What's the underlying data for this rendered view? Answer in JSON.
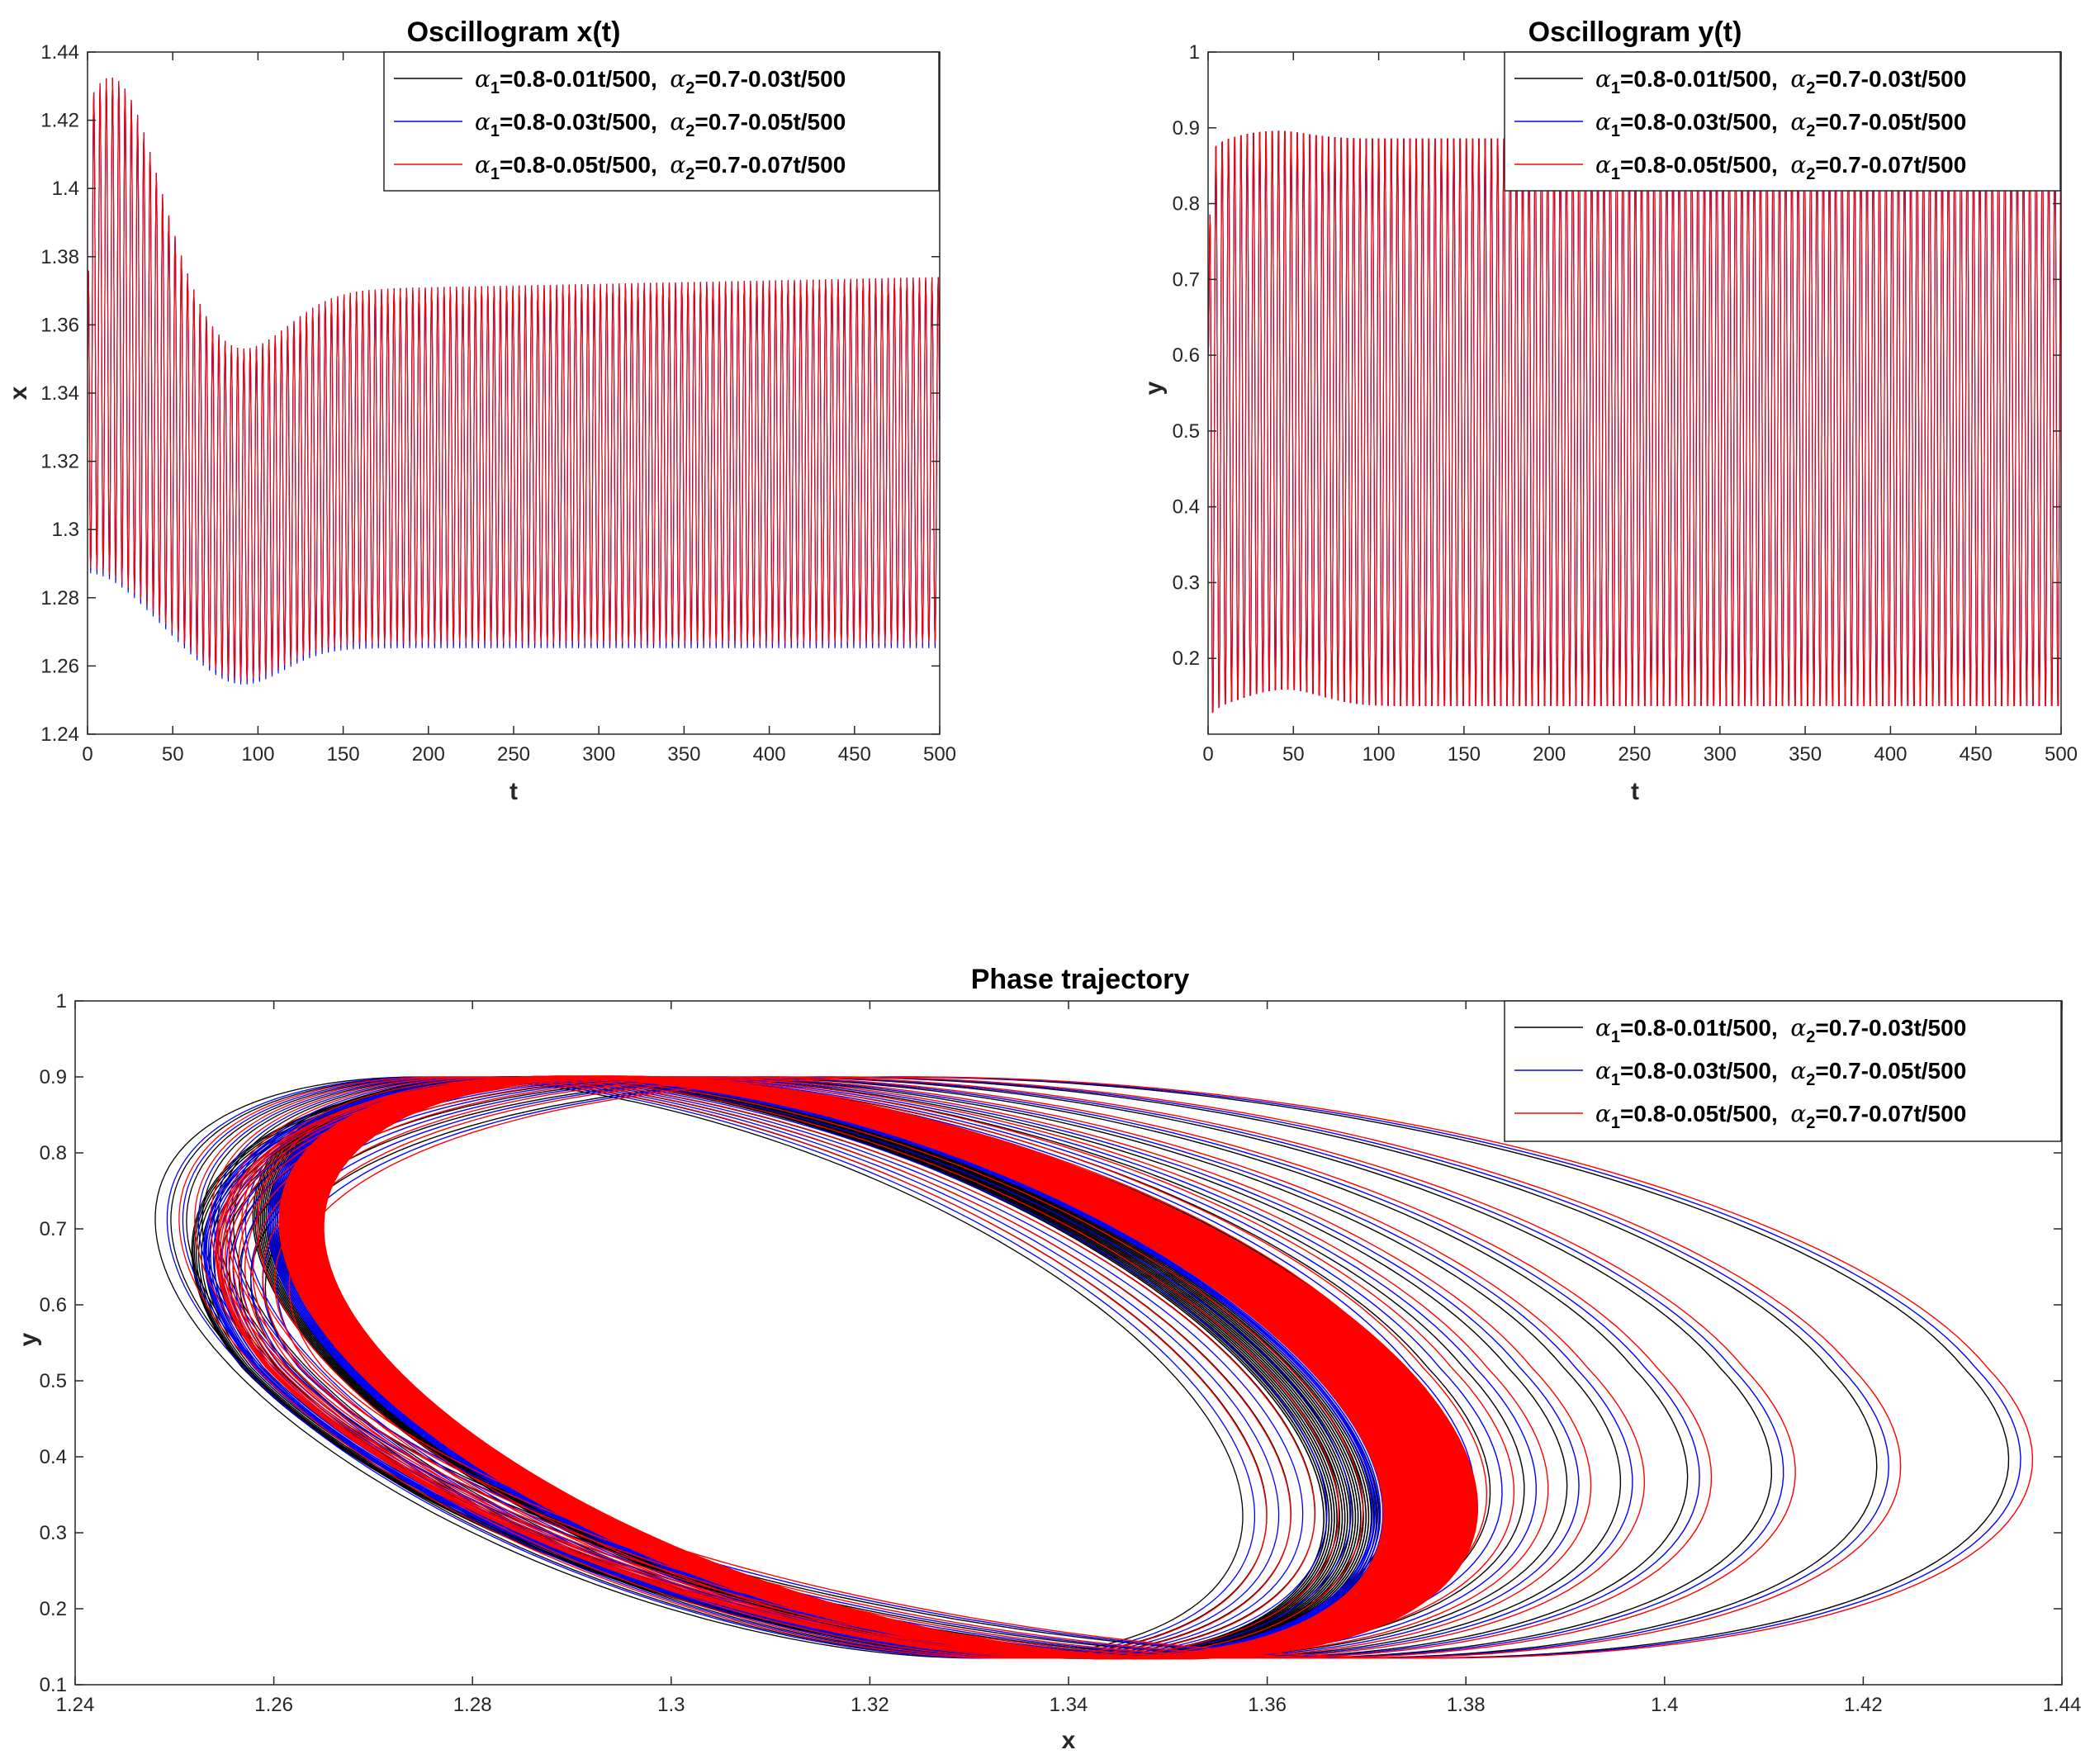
{
  "chart_data": [
    {
      "type": "line",
      "title": "Oscillogram x(t)",
      "xlabel": "t",
      "ylabel": "x",
      "xlim": [
        0,
        500
      ],
      "ylim": [
        1.24,
        1.44
      ],
      "xticks": [
        "0",
        "50",
        "100",
        "150",
        "200",
        "250",
        "300",
        "350",
        "400",
        "450",
        "500"
      ],
      "yticks": [
        "1.24",
        "1.26",
        "1.28",
        "1.3",
        "1.32",
        "1.34",
        "1.36",
        "1.38",
        "1.4",
        "1.42",
        "1.44"
      ],
      "legend_position": "top-right",
      "oscillation": {
        "period": 3.67,
        "x0": 1.35,
        "initial_max": 1.433,
        "initial_min": 1.288,
        "settled_max": 1.374,
        "settled_min": 1.266,
        "trough_max_envelope": 1.355,
        "trough_max_t": 88,
        "trough_min_envelope": 1.256
      },
      "series": [
        {
          "name_prefix": "α",
          "sub1": "1",
          "mid": "=0.8-0.01t/500,  α",
          "sub2": "2",
          "suffix": "=0.7-0.03t/500",
          "color": "#000000",
          "min_offset": 0.0
        },
        {
          "name_prefix": "α",
          "sub1": "1",
          "mid": "=0.8-0.03t/500,  α",
          "sub2": "2",
          "suffix": "=0.7-0.05t/500",
          "color": "#0000ff",
          "min_offset": -0.0008
        },
        {
          "name_prefix": "α",
          "sub1": "1",
          "mid": "=0.8-0.05t/500,  α",
          "sub2": "2",
          "suffix": "=0.7-0.07t/500",
          "color": "#ff0000",
          "min_offset": 0.0006
        }
      ]
    },
    {
      "type": "line",
      "title": "Oscillogram y(t)",
      "xlabel": "t",
      "ylabel": "y",
      "xlim": [
        0,
        500
      ],
      "ylim": [
        0.1,
        1.0
      ],
      "xticks": [
        "0",
        "50",
        "100",
        "150",
        "200",
        "250",
        "300",
        "350",
        "400",
        "450",
        "500"
      ],
      "yticks": [
        "0.2",
        "0.3",
        "0.4",
        "0.5",
        "0.6",
        "0.7",
        "0.8",
        "0.9",
        "1"
      ],
      "legend_position": "top-right",
      "oscillation": {
        "period": 3.67,
        "y0": 0.6,
        "max_start": 0.87,
        "max_peak": 0.905,
        "max_peak_t": 40,
        "max_settled": 0.895,
        "min_start": 0.11,
        "min_peak": 0.15,
        "min_peak_t": 45,
        "min_settled": 0.128
      },
      "series": [
        {
          "name_prefix": "α",
          "sub1": "1",
          "mid": "=0.8-0.01t/500,  α",
          "sub2": "2",
          "suffix": "=0.7-0.03t/500",
          "color": "#000000"
        },
        {
          "name_prefix": "α",
          "sub1": "1",
          "mid": "=0.8-0.03t/500,  α",
          "sub2": "2",
          "suffix": "=0.7-0.05t/500",
          "color": "#0000ff"
        },
        {
          "name_prefix": "α",
          "sub1": "1",
          "mid": "=0.8-0.05t/500,  α",
          "sub2": "2",
          "suffix": "=0.7-0.07t/500",
          "color": "#ff0000"
        }
      ]
    },
    {
      "type": "line",
      "title": "Phase trajectory",
      "xlabel": "x",
      "ylabel": "y",
      "xlim": [
        1.24,
        1.44
      ],
      "ylim": [
        0.1,
        1.0
      ],
      "xticks": [
        "1.24",
        "1.26",
        "1.28",
        "1.3",
        "1.32",
        "1.34",
        "1.36",
        "1.38",
        "1.4",
        "1.42",
        "1.44"
      ],
      "yticks": [
        "0.1",
        "0.2",
        "0.3",
        "0.4",
        "0.5",
        "0.6",
        "0.7",
        "0.8",
        "0.9",
        "1"
      ],
      "legend_position": "top-right",
      "orbit": {
        "outer_right_x": 1.433,
        "outer_left_x": 1.256,
        "settled_right_x": 1.374,
        "settled_left_x": 1.266,
        "inner_right_x": 1.352,
        "y_top": 0.9,
        "y_bottom": 0.135,
        "y_at_right_extreme": 0.39,
        "y_at_left_extreme": 0.64
      },
      "series": [
        {
          "name_prefix": "α",
          "sub1": "1",
          "mid": "=0.8-0.01t/500,  α",
          "sub2": "2",
          "suffix": "=0.7-0.03t/500",
          "color": "#000000"
        },
        {
          "name_prefix": "α",
          "sub1": "1",
          "mid": "=0.8-0.03t/500,  α",
          "sub2": "2",
          "suffix": "=0.7-0.05t/500",
          "color": "#0000ff"
        },
        {
          "name_prefix": "α",
          "sub1": "1",
          "mid": "=0.8-0.05t/500,  α",
          "sub2": "2",
          "suffix": "=0.7-0.07t/500",
          "color": "#ff0000"
        }
      ]
    }
  ]
}
